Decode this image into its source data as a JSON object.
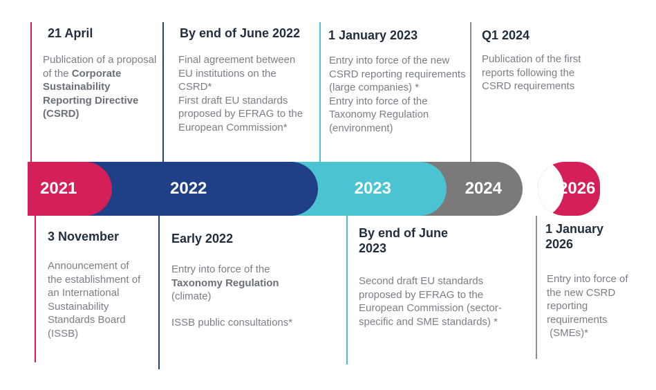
{
  "colors": {
    "y2021": "#d41f59",
    "y2022": "#1f3f87",
    "y2023": "#4cc3d3",
    "y2024": "#7a7a7a",
    "y2026": "#d41f59",
    "line_2021": "#d41f59",
    "line_2022": "#1f3f87",
    "line_2023": "#4cc3d3",
    "line_gray": "#8c8c8c"
  },
  "years": [
    "2021",
    "2022",
    "2023",
    "2024",
    "2026"
  ],
  "events_top": [
    {
      "heading": "21 April",
      "desc_pre": "Publication of a proposal of the ",
      "desc_bold": "Corporate Sustainability Reporting Directive (CSRD)",
      "desc_post": ""
    },
    {
      "heading": "By end of June 2022",
      "desc_pre": "Final agreement between EU institutions on the CSRD*",
      "desc2": "First draft EU standards proposed by EFRAG to the European Commission*"
    },
    {
      "heading": "1 January 2023",
      "desc_pre": "Entry into force of the new CSRD reporting requirements (large companies) *",
      "desc2": "Entry into force of the Taxonomy Regulation (environment)"
    },
    {
      "heading": "Q1 2024",
      "desc_pre": "Publication of the first reports following the CSRD requirements"
    }
  ],
  "events_bottom": [
    {
      "heading": "3 November",
      "desc_pre": "Announcement of the establishment of an International Sustainability Standards Board (ISSB)"
    },
    {
      "heading": "Early 2022",
      "desc_pre": "Entry into force of the ",
      "desc_bold": "Taxonomy Regulation",
      "desc_post": " (climate)",
      "desc2": "ISSB public consultations*"
    },
    {
      "heading": "By end of June\n2023",
      "desc_pre": "Second draft EU standards proposed by EFRAG to the European Commission (sector-specific and SME standards) *"
    },
    {
      "heading": "1 January\n2026",
      "desc_pre": "Entry into force of the new CSRD reporting requirements",
      "desc2": " (SMEs)*"
    }
  ]
}
